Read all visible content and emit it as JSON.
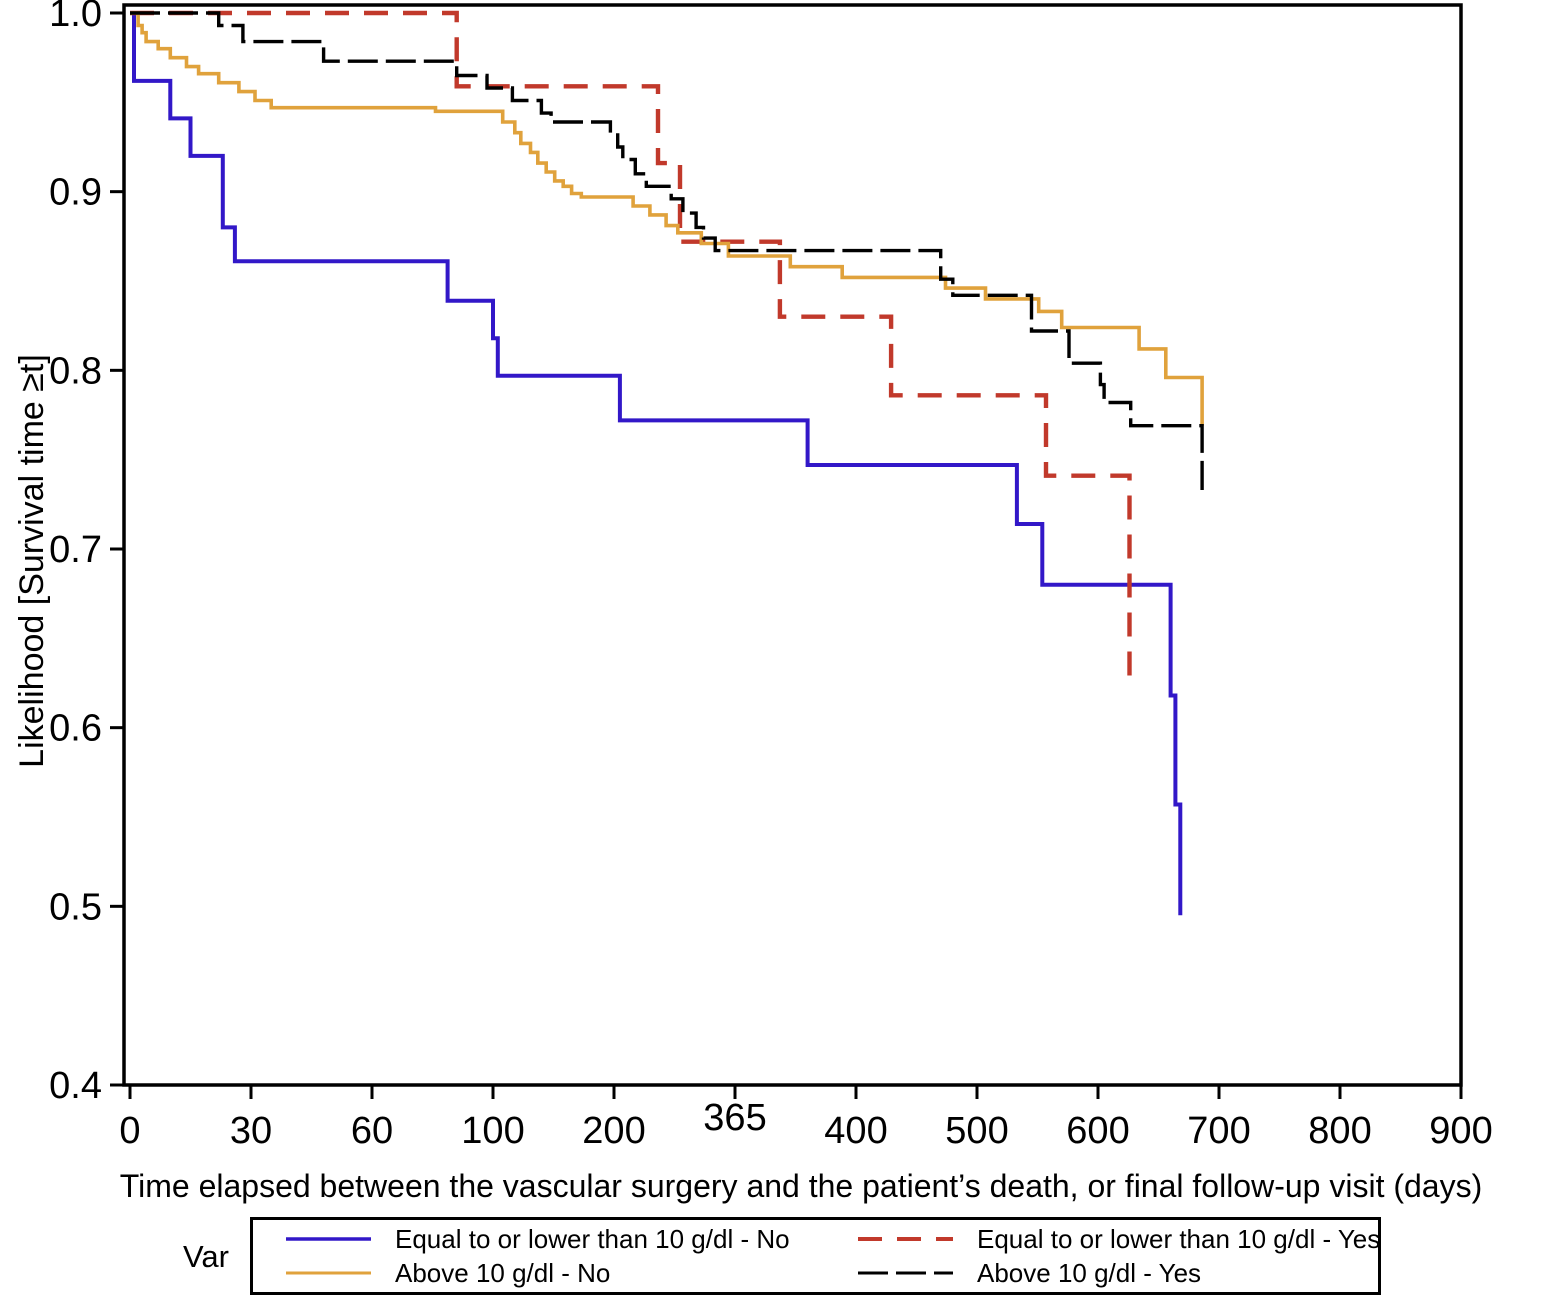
{
  "chart_data": {
    "type": "line",
    "variant": "kaplan-meier-step-survival",
    "title": "",
    "xlabel": "Time elapsed between the vascular surgery and the patient’s death, or final follow-up visit (days)",
    "ylabel": "Likelihood [Survival time ≥t]",
    "ylim": [
      0.4,
      1.0
    ],
    "y_ticks": [
      "1.0",
      "0.9",
      "0.8",
      "0.7",
      "0.6",
      "0.5",
      "0.4"
    ],
    "x_axis": {
      "note": "tick marks are equally spaced although day values are non-linear; the 365 label is drawn slightly raised",
      "ticks": [
        {
          "label": "0",
          "day": 0
        },
        {
          "label": "30",
          "day": 30
        },
        {
          "label": "60",
          "day": 60
        },
        {
          "label": "100",
          "day": 100
        },
        {
          "label": "200",
          "day": 200
        },
        {
          "label": "365",
          "day": 365,
          "raised": true
        },
        {
          "label": "400",
          "day": 400
        },
        {
          "label": "500",
          "day": 500
        },
        {
          "label": "600",
          "day": 600
        },
        {
          "label": "700",
          "day": 700
        },
        {
          "label": "800",
          "day": 800
        },
        {
          "label": "900",
          "day": 900
        }
      ]
    },
    "legend_title": "Var",
    "legend_position": "bottom",
    "grid": false,
    "series": [
      {
        "name": "Equal to or lower than 10 g/dl - No",
        "color": "#3218C8",
        "dash": null,
        "width": 4,
        "start": [
          0,
          1.0
        ],
        "end_day": 668,
        "steps": [
          [
            1,
            0.962
          ],
          [
            10,
            0.941
          ],
          [
            15,
            0.92
          ],
          [
            23,
            0.88
          ],
          [
            26,
            0.861
          ],
          [
            85,
            0.839
          ],
          [
            100,
            0.818
          ],
          [
            104,
            0.797
          ],
          [
            208,
            0.772
          ],
          [
            386,
            0.747
          ],
          [
            533,
            0.714
          ],
          [
            554,
            0.68
          ],
          [
            660,
            0.618
          ],
          [
            664,
            0.557
          ],
          [
            668,
            0.495
          ]
        ]
      },
      {
        "name": "Equal to or lower than 10 g/dl - Yes",
        "color": "#C1392B",
        "dash": "24 15",
        "width": 4.4,
        "start": [
          0,
          1.0
        ],
        "end_day": 626,
        "steps": [
          [
            88,
            0.959
          ],
          [
            260,
            0.916
          ],
          [
            290,
            0.872
          ],
          [
            378,
            0.83
          ],
          [
            429,
            0.786
          ],
          [
            557,
            0.741
          ],
          [
            626,
            0.625
          ]
        ]
      },
      {
        "name": "Above 10 g/dl - No",
        "color": "#E0A23C",
        "dash": null,
        "width": 3.6,
        "start": [
          0,
          1.0
        ],
        "end_day": 686,
        "steps": [
          [
            2,
            0.993
          ],
          [
            3,
            0.989
          ],
          [
            4,
            0.984
          ],
          [
            7,
            0.98
          ],
          [
            10,
            0.975
          ],
          [
            14,
            0.97
          ],
          [
            17,
            0.966
          ],
          [
            22,
            0.961
          ],
          [
            27,
            0.956
          ],
          [
            31,
            0.951
          ],
          [
            35,
            0.947
          ],
          [
            81,
            0.945
          ],
          [
            108,
            0.939
          ],
          [
            118,
            0.933
          ],
          [
            123,
            0.927
          ],
          [
            131,
            0.922
          ],
          [
            137,
            0.916
          ],
          [
            144,
            0.911
          ],
          [
            151,
            0.906
          ],
          [
            158,
            0.903
          ],
          [
            165,
            0.899
          ],
          [
            173,
            0.897
          ],
          [
            226,
            0.892
          ],
          [
            249,
            0.887
          ],
          [
            271,
            0.881
          ],
          [
            287,
            0.877
          ],
          [
            319,
            0.871
          ],
          [
            356,
            0.864
          ],
          [
            381,
            0.858
          ],
          [
            396,
            0.852
          ],
          [
            474,
            0.846
          ],
          [
            507,
            0.84
          ],
          [
            551,
            0.833
          ],
          [
            570,
            0.824
          ],
          [
            634,
            0.812
          ],
          [
            656,
            0.796
          ],
          [
            686,
            0.769
          ]
        ]
      },
      {
        "name": "Above 10 g/dl - Yes",
        "color": "#000000",
        "dash": "30 8",
        "width": 3.4,
        "start": [
          0,
          1.0
        ],
        "end_day": 686,
        "steps": [
          [
            22,
            0.993
          ],
          [
            28,
            0.984
          ],
          [
            48,
            0.973
          ],
          [
            88,
            0.965
          ],
          [
            98,
            0.958
          ],
          [
            116,
            0.951
          ],
          [
            140,
            0.944
          ],
          [
            148,
            0.939
          ],
          [
            197,
            0.933
          ],
          [
            205,
            0.925
          ],
          [
            212,
            0.918
          ],
          [
            229,
            0.91
          ],
          [
            244,
            0.903
          ],
          [
            278,
            0.896
          ],
          [
            294,
            0.888
          ],
          [
            312,
            0.88
          ],
          [
            322,
            0.874
          ],
          [
            338,
            0.867
          ],
          [
            470,
            0.851
          ],
          [
            480,
            0.842
          ],
          [
            545,
            0.822
          ],
          [
            576,
            0.804
          ],
          [
            602,
            0.792
          ],
          [
            605,
            0.782
          ],
          [
            627,
            0.769
          ],
          [
            686,
            0.733
          ]
        ]
      }
    ]
  }
}
